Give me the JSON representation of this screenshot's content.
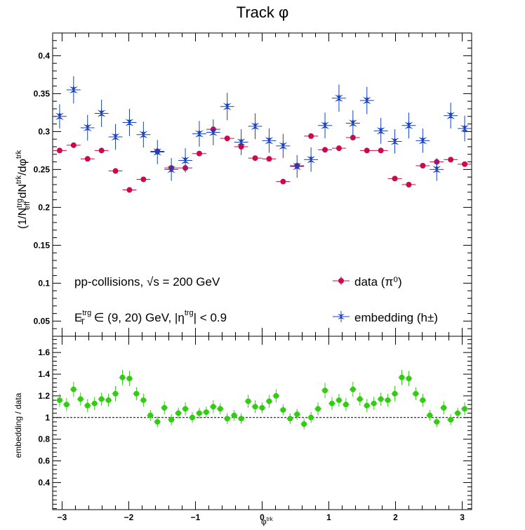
{
  "chart_data": [
    {
      "type": "scatter",
      "title": "Track φ",
      "ylabel": "(1/N_eff^trg) dN^trk/dφ^trk",
      "xlim": [
        -3.1416,
        3.1416
      ],
      "ylim": [
        0.03,
        0.43
      ],
      "x_ticks": [
        -3,
        -2,
        -1,
        0,
        1,
        2,
        3
      ],
      "y_ticks": [
        0.05,
        0.1,
        0.15,
        0.2,
        0.25,
        0.3,
        0.35,
        0.4
      ],
      "x_tick_labels": [
        "−3",
        "−2",
        "−1",
        "0",
        "1",
        "2",
        "3"
      ],
      "y_tick_labels": [
        "0.05",
        "0.1",
        "0.15",
        "0.2",
        "0.25",
        "0.3",
        "0.35",
        "0.4"
      ],
      "annotations": {
        "collision": "pp-collisions, √s = 200 GeV",
        "et_prefix": "E",
        "et_sup": "trg",
        "et_sub": "T",
        "et_range": " ∈ (9, 20) GeV, |η",
        "eta_sup": "trg",
        "eta_cut": "| < 0.9"
      },
      "legend": {
        "placement": "bottom-right",
        "entries": [
          "data (π⁰)",
          "embedding (h±)"
        ]
      },
      "x": [
        -3.0369,
        -2.8274,
        -2.618,
        -2.4086,
        -2.1991,
        -1.9897,
        -1.7802,
        -1.5708,
        -1.3614,
        -1.1519,
        -0.9425,
        -0.733,
        -0.5236,
        -0.3142,
        -0.1047,
        0.1047,
        0.3142,
        0.5236,
        0.733,
        0.9425,
        1.1519,
        1.3614,
        1.5708,
        1.7802,
        1.9897,
        2.1991,
        2.4086,
        2.618,
        2.8274,
        3.0369
      ],
      "series": [
        {
          "name": "data (π⁰)",
          "color": "#cc0a4a",
          "marker": "circle",
          "values": [
            0.275,
            0.282,
            0.264,
            0.275,
            0.248,
            0.223,
            0.237,
            0.274,
            0.252,
            0.252,
            0.271,
            0.303,
            0.291,
            0.28,
            0.265,
            0.264,
            0.234,
            0.255,
            0.294,
            0.276,
            0.278,
            0.292,
            0.275,
            0.275,
            0.238,
            0.23,
            0.255,
            0.26,
            0.263,
            0.257
          ],
          "errors": [
            0.003,
            0.003,
            0.003,
            0.003,
            0.003,
            0.003,
            0.003,
            0.003,
            0.003,
            0.003,
            0.003,
            0.003,
            0.003,
            0.003,
            0.003,
            0.003,
            0.003,
            0.003,
            0.003,
            0.003,
            0.003,
            0.003,
            0.003,
            0.003,
            0.003,
            0.003,
            0.003,
            0.003,
            0.003,
            0.003
          ]
        },
        {
          "name": "embedding (h±)",
          "color": "#1540c4",
          "marker": "star",
          "values": [
            0.32,
            0.355,
            0.305,
            0.324,
            0.293,
            0.312,
            0.296,
            0.273,
            0.25,
            0.262,
            0.297,
            0.299,
            0.333,
            0.286,
            0.307,
            0.288,
            0.281,
            0.254,
            0.263,
            0.308,
            0.344,
            0.311,
            0.341,
            0.301,
            0.287,
            0.308,
            0.288,
            0.25,
            0.321,
            0.304
          ],
          "errors": [
            0.016,
            0.018,
            0.017,
            0.018,
            0.017,
            0.018,
            0.017,
            0.016,
            0.015,
            0.016,
            0.017,
            0.017,
            0.018,
            0.017,
            0.017,
            0.016,
            0.016,
            0.015,
            0.016,
            0.017,
            0.018,
            0.017,
            0.018,
            0.017,
            0.016,
            0.017,
            0.016,
            0.015,
            0.017,
            0.017
          ]
        }
      ]
    },
    {
      "type": "scatter",
      "xlabel": "φ^trk",
      "ylabel": "embedding / data",
      "xlim": [
        -3.1416,
        3.1416
      ],
      "ylim": [
        0.15,
        1.75
      ],
      "x_ticks": [
        -3,
        -2,
        -1,
        0,
        1,
        2,
        3
      ],
      "y_ticks": [
        0.4,
        0.6,
        0.8,
        1.0,
        1.2,
        1.4,
        1.6
      ],
      "x_tick_labels": [
        "−3",
        "−2",
        "−1",
        "0",
        "1",
        "2",
        "3"
      ],
      "y_tick_labels": [
        "0.4",
        "0.6",
        "0.8",
        "1",
        "1.2",
        "1.4",
        "1.6"
      ],
      "reference_line": 1.0,
      "x": [
        -3.0369,
        -2.9322,
        -2.8274,
        -2.7227,
        -2.618,
        -2.5133,
        -2.4086,
        -2.3038,
        -2.1991,
        -2.0944,
        -1.9897,
        -1.885,
        -1.7802,
        -1.6755,
        -1.5708,
        -1.4661,
        -1.3614,
        -1.2566,
        -1.1519,
        -1.0472,
        -0.9425,
        -0.8378,
        -0.733,
        -0.6283,
        -0.5236,
        -0.4189,
        -0.3142,
        -0.2094,
        -0.1047,
        0.0,
        0.1047,
        0.2094,
        0.3142,
        0.4189,
        0.5236,
        0.6283,
        0.733,
        0.8378,
        0.9425,
        1.0472,
        1.1519,
        1.2566,
        1.3614,
        1.4661,
        1.5708,
        1.6755,
        1.7802,
        1.885,
        1.9897,
        2.0944,
        2.1991,
        2.3038,
        2.4086,
        2.5133,
        2.618,
        2.7227,
        2.8274,
        2.9322,
        3.0369
      ],
      "series": [
        {
          "name": "",
          "color": "#33cc14",
          "marker": "circle",
          "values": [
            1.16,
            1.12,
            1.26,
            1.17,
            1.11,
            1.13,
            1.17,
            1.16,
            1.22,
            1.37,
            1.36,
            1.22,
            1.16,
            1.02,
            0.96,
            1.09,
            0.98,
            1.04,
            1.08,
            1.0,
            1.04,
            1.05,
            1.1,
            1.08,
            0.99,
            1.02,
            0.99,
            1.15,
            1.1,
            1.09,
            1.15,
            1.2,
            1.07,
            0.99,
            1.03,
            0.94,
            1.0,
            1.08,
            1.25,
            1.13,
            1.16,
            1.12,
            1.26,
            1.17,
            1.11,
            1.13,
            1.17,
            1.16,
            1.22,
            1.37,
            1.36,
            1.22,
            1.16,
            1.02,
            0.96,
            1.09,
            0.98,
            1.04,
            1.08
          ],
          "errors": [
            0.06,
            0.06,
            0.07,
            0.06,
            0.06,
            0.06,
            0.06,
            0.06,
            0.07,
            0.07,
            0.07,
            0.06,
            0.06,
            0.05,
            0.05,
            0.06,
            0.05,
            0.05,
            0.06,
            0.05,
            0.05,
            0.05,
            0.06,
            0.05,
            0.05,
            0.05,
            0.05,
            0.06,
            0.06,
            0.05,
            0.06,
            0.06,
            0.05,
            0.05,
            0.05,
            0.05,
            0.05,
            0.06,
            0.07,
            0.06,
            0.06,
            0.06,
            0.07,
            0.06,
            0.06,
            0.06,
            0.06,
            0.06,
            0.07,
            0.07,
            0.07,
            0.06,
            0.06,
            0.05,
            0.05,
            0.06,
            0.05,
            0.05,
            0.06
          ]
        }
      ]
    }
  ]
}
